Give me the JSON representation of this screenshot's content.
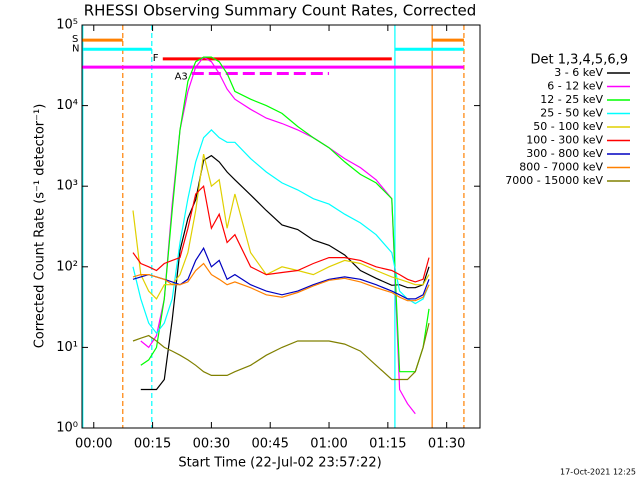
{
  "chart_data": {
    "type": "line",
    "title": "RHESSI Observing Summary Count Rates, Corrected",
    "x_label": "Start Time (22-Jul-02 23:57:22)",
    "y_label": "Corrected Count Rate (s⁻¹ detector⁻¹)",
    "legend_title": "Det 1,3,4,5,6,9",
    "footer": "17-Oct-2021 12:25",
    "log_y": true,
    "xlim": [
      -3,
      98.5
    ],
    "ylim": [
      1,
      100000
    ],
    "xticks": [
      {
        "value": 0,
        "label": "00:00"
      },
      {
        "value": 15,
        "label": "00:15"
      },
      {
        "value": 30,
        "label": "00:30"
      },
      {
        "value": 45,
        "label": "00:45"
      },
      {
        "value": 60,
        "label": "01:00"
      },
      {
        "value": 75,
        "label": "01:15"
      },
      {
        "value": 90,
        "label": "01:30"
      }
    ],
    "yticks": [
      {
        "value": 1,
        "label": "10⁰"
      },
      {
        "value": 10,
        "label": "10¹"
      },
      {
        "value": 100,
        "label": "10²"
      },
      {
        "value": 1000,
        "label": "10³"
      },
      {
        "value": 10000,
        "label": "10⁴"
      },
      {
        "value": 100000,
        "label": "10⁵"
      }
    ],
    "x": [
      10,
      12,
      14,
      16,
      18,
      20,
      22,
      24,
      26,
      28,
      30,
      32,
      34,
      36,
      40,
      44,
      48,
      52,
      56,
      60,
      64,
      68,
      72,
      76,
      78,
      80,
      82,
      84,
      85.5
    ],
    "series": [
      {
        "name": "3 - 6 keV",
        "color": "#000000",
        "values": [
          null,
          3,
          3,
          3,
          4,
          22,
          160,
          400,
          680,
          2100,
          2400,
          2000,
          1500,
          1200,
          780,
          500,
          330,
          290,
          215,
          185,
          140,
          90,
          72,
          59,
          60,
          55,
          55,
          60,
          100
        ]
      },
      {
        "name": "6 - 12 keV",
        "color": "#ff00ff",
        "values": [
          null,
          12,
          10,
          14,
          40,
          600,
          5000,
          15000,
          30000,
          40000,
          35000,
          25000,
          16000,
          12000,
          9000,
          7000,
          6000,
          5000,
          4000,
          3000,
          2200,
          1700,
          1200,
          700,
          3,
          2,
          1.5,
          null,
          null
        ]
      },
      {
        "name": "12 - 25 keV",
        "color": "#00ff00",
        "values": [
          null,
          6,
          7,
          10,
          40,
          500,
          5000,
          20000,
          35000,
          40000,
          40000,
          35000,
          25000,
          15000,
          12000,
          10000,
          8000,
          5500,
          4000,
          3000,
          2000,
          1400,
          1100,
          700,
          5,
          5,
          5,
          10,
          30
        ]
      },
      {
        "name": "25 - 50 keV",
        "color": "#00ffff",
        "values": [
          100,
          40,
          20,
          15,
          20,
          40,
          200,
          700,
          2000,
          4000,
          5000,
          4000,
          3500,
          3500,
          2200,
          1500,
          1100,
          900,
          700,
          600,
          450,
          350,
          250,
          150,
          50,
          40,
          35,
          40,
          60
        ]
      },
      {
        "name": "50 - 100 keV",
        "color": "#e0d000",
        "values": [
          500,
          80,
          50,
          40,
          60,
          60,
          80,
          150,
          500,
          2500,
          1000,
          1200,
          300,
          800,
          150,
          80,
          100,
          90,
          80,
          100,
          120,
          110,
          90,
          75,
          70,
          65,
          60,
          60,
          80
        ]
      },
      {
        "name": "100 - 300 keV",
        "color": "#ff0000",
        "values": [
          150,
          110,
          100,
          90,
          110,
          120,
          130,
          300,
          800,
          1000,
          300,
          450,
          200,
          250,
          100,
          80,
          85,
          90,
          110,
          130,
          130,
          120,
          100,
          90,
          80,
          70,
          65,
          70,
          130
        ]
      },
      {
        "name": "300 - 800 keV",
        "color": "#0000c0",
        "values": [
          70,
          75,
          80,
          75,
          70,
          65,
          60,
          70,
          120,
          170,
          100,
          120,
          70,
          80,
          60,
          50,
          45,
          50,
          60,
          70,
          75,
          70,
          60,
          50,
          45,
          40,
          40,
          45,
          70
        ]
      },
      {
        "name": "800 - 7000 keV",
        "color": "#ff8000",
        "values": [
          75,
          80,
          80,
          75,
          70,
          60,
          60,
          65,
          90,
          110,
          80,
          70,
          60,
          65,
          55,
          45,
          42,
          48,
          58,
          68,
          72,
          65,
          55,
          48,
          42,
          38,
          38,
          42,
          60
        ]
      },
      {
        "name": "7000 - 15000 keV",
        "color": "#808000",
        "values": [
          12,
          13,
          14,
          12,
          10,
          9,
          8,
          7,
          6,
          5,
          4.5,
          4.5,
          4.5,
          5,
          6,
          8,
          10,
          12,
          12,
          12,
          11,
          9,
          6,
          4,
          4,
          4,
          5,
          10,
          20
        ]
      }
    ],
    "vlines": [
      {
        "x": -2.8,
        "color": "#00ffff",
        "dash": false
      },
      {
        "x": 7.4,
        "color": "#ff8000",
        "dash": true
      },
      {
        "x": 14.8,
        "color": "#00ffff",
        "dash": true
      },
      {
        "x": 76.8,
        "color": "#00ffff",
        "dash": false
      },
      {
        "x": 86.3,
        "color": "#ff8000",
        "dash": false
      },
      {
        "x": 94.4,
        "color": "#ff8000",
        "dash": true
      }
    ],
    "flags": [
      {
        "label": "S",
        "color": "#ff8000",
        "y": 65000,
        "dash": false,
        "intervals": [
          [
            -3,
            7.4
          ],
          [
            86.3,
            94.4
          ]
        ]
      },
      {
        "label": "N",
        "color": "#00ffff",
        "y": 50000,
        "dash": false,
        "intervals": [
          [
            -3,
            14.8
          ],
          [
            76.8,
            94.4
          ]
        ]
      },
      {
        "label": "F",
        "color": "#ff0000",
        "y": 38000,
        "dash": false,
        "intervals": [
          [
            17.6,
            76
          ]
        ]
      },
      {
        "color": "#ff00ff",
        "y": 30000,
        "dash": false,
        "intervals": [
          [
            -3,
            94.4
          ]
        ]
      },
      {
        "label": "A3",
        "color": "#ff00ff",
        "y": 25000,
        "dash": true,
        "intervals": [
          [
            25,
            60
          ]
        ]
      }
    ]
  }
}
